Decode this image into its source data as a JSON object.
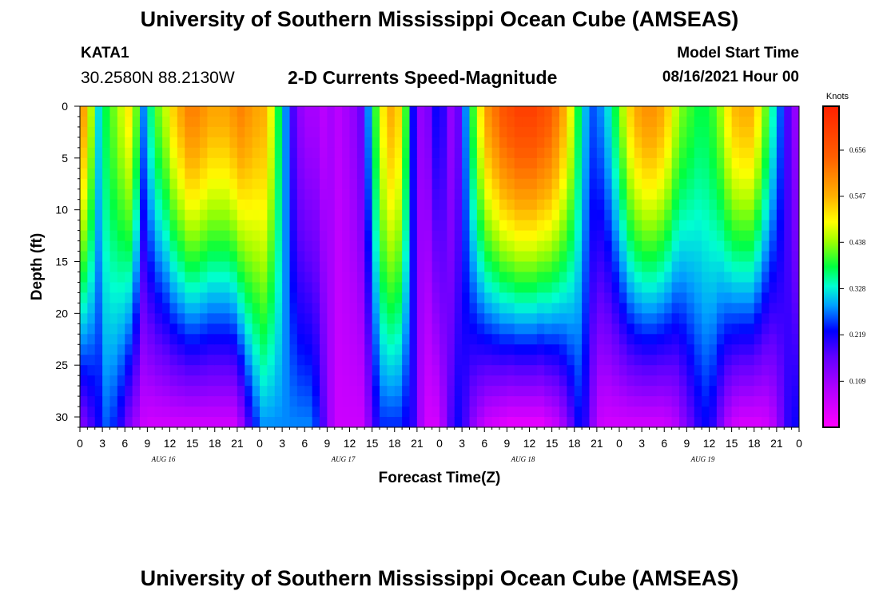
{
  "page_title_top": "University of Southern Mississippi Ocean Cube (AMSEAS)",
  "page_title_bottom": "University of Southern Mississippi Ocean Cube (AMSEAS)",
  "station": {
    "id": "KATA1",
    "coords": "30.2580N  88.2130W"
  },
  "model": {
    "label": "Model Start Time",
    "start": "08/16/2021 Hour 00"
  },
  "chart_data": {
    "type": "heatmap",
    "title": "2-D Currents Speed-Magnitude",
    "xlabel": "Forecast Time(Z)",
    "ylabel": "Depth (ft)",
    "xlim": [
      0,
      96
    ],
    "ylim": [
      31,
      0
    ],
    "x_tick_values": [
      0,
      3,
      6,
      9,
      12,
      15,
      18,
      21,
      24,
      27,
      30,
      33,
      36,
      39,
      42,
      45,
      48,
      51,
      54,
      57,
      60,
      63,
      66,
      69,
      72,
      75,
      78,
      81,
      84,
      87,
      90,
      93,
      96
    ],
    "x_tick_labels": [
      "0",
      "3",
      "6",
      "9",
      "12",
      "15",
      "18",
      "21",
      "0",
      "3",
      "6",
      "9",
      "12",
      "15",
      "18",
      "21",
      "0",
      "3",
      "6",
      "9",
      "12",
      "15",
      "18",
      "21",
      "0",
      "3",
      "6",
      "9",
      "12",
      "15",
      "18",
      "21",
      "0"
    ],
    "y_tick_values": [
      0,
      5,
      10,
      15,
      20,
      25,
      30
    ],
    "y_tick_labels": [
      "0",
      "5",
      "10",
      "15",
      "20",
      "25",
      "30"
    ],
    "day_labels": [
      {
        "hour": 12,
        "label": "AUG 16"
      },
      {
        "hour": 36,
        "label": "AUG 17"
      },
      {
        "hour": 60,
        "label": "AUG 18"
      },
      {
        "hour": 84,
        "label": "AUG 19"
      }
    ],
    "colorbar": {
      "unit": "Knots",
      "min": 0.0,
      "max": 0.76,
      "tick_values": [
        0.109,
        0.219,
        0.328,
        0.438,
        0.547,
        0.656
      ],
      "tick_labels": [
        "0.109",
        "0.219",
        "0.328",
        "0.438",
        "0.547",
        "0.656"
      ]
    },
    "time_hours": [
      0,
      1,
      2,
      3,
      4,
      5,
      6,
      7,
      8,
      9,
      10,
      11,
      12,
      13,
      14,
      15,
      16,
      17,
      18,
      19,
      20,
      21,
      22,
      23,
      24,
      25,
      26,
      27,
      28,
      29,
      30,
      31,
      32,
      33,
      34,
      35,
      36,
      37,
      38,
      39,
      40,
      41,
      42,
      43,
      44,
      45,
      46,
      47,
      48,
      49,
      50,
      51,
      52,
      53,
      54,
      55,
      56,
      57,
      58,
      59,
      60,
      61,
      62,
      63,
      64,
      65,
      66,
      67,
      68,
      69,
      70,
      71,
      72,
      73,
      74,
      75,
      76,
      77,
      78,
      79,
      80,
      81,
      82,
      83,
      84,
      85,
      86,
      87,
      88,
      89,
      90,
      91,
      92,
      93,
      94,
      95,
      96
    ],
    "speed_surface_knots": [
      0.56,
      0.45,
      0.32,
      0.38,
      0.42,
      0.46,
      0.5,
      0.42,
      0.28,
      0.36,
      0.42,
      0.46,
      0.52,
      0.56,
      0.6,
      0.6,
      0.58,
      0.56,
      0.56,
      0.56,
      0.58,
      0.6,
      0.58,
      0.56,
      0.55,
      0.48,
      0.38,
      0.28,
      0.18,
      0.12,
      0.1,
      0.1,
      0.08,
      0.1,
      0.08,
      0.1,
      0.12,
      0.16,
      0.28,
      0.4,
      0.5,
      0.55,
      0.52,
      0.4,
      0.22,
      0.12,
      0.14,
      0.22,
      0.2,
      0.12,
      0.16,
      0.28,
      0.4,
      0.5,
      0.58,
      0.62,
      0.66,
      0.68,
      0.7,
      0.7,
      0.7,
      0.68,
      0.66,
      0.62,
      0.56,
      0.48,
      0.38,
      0.3,
      0.26,
      0.28,
      0.32,
      0.38,
      0.45,
      0.52,
      0.56,
      0.58,
      0.58,
      0.56,
      0.52,
      0.46,
      0.42,
      0.4,
      0.38,
      0.38,
      0.4,
      0.44,
      0.5,
      0.54,
      0.55,
      0.55,
      0.5,
      0.42,
      0.34,
      0.26,
      0.18,
      0.12,
      0.1
    ],
    "speed_bottom_knots": [
      0.14,
      0.18,
      0.22,
      0.26,
      0.24,
      0.2,
      0.14,
      0.1,
      0.06,
      0.05,
      0.05,
      0.05,
      0.05,
      0.05,
      0.05,
      0.05,
      0.05,
      0.05,
      0.05,
      0.05,
      0.05,
      0.1,
      0.18,
      0.24,
      0.28,
      0.28,
      0.28,
      0.28,
      0.28,
      0.28,
      0.28,
      0.25,
      0.18,
      0.1,
      0.06,
      0.06,
      0.06,
      0.06,
      0.12,
      0.2,
      0.24,
      0.24,
      0.24,
      0.22,
      0.2,
      0.1,
      0.05,
      0.05,
      0.1,
      0.18,
      0.22,
      0.18,
      0.12,
      0.08,
      0.05,
      0.04,
      0.03,
      0.02,
      0.02,
      0.02,
      0.02,
      0.02,
      0.04,
      0.06,
      0.1,
      0.16,
      0.22,
      0.2,
      0.12,
      0.06,
      0.05,
      0.05,
      0.05,
      0.05,
      0.05,
      0.05,
      0.05,
      0.05,
      0.06,
      0.08,
      0.12,
      0.16,
      0.2,
      0.22,
      0.2,
      0.14,
      0.08,
      0.05,
      0.04,
      0.04,
      0.04,
      0.05,
      0.08,
      0.14,
      0.2,
      0.22,
      0.16
    ]
  }
}
